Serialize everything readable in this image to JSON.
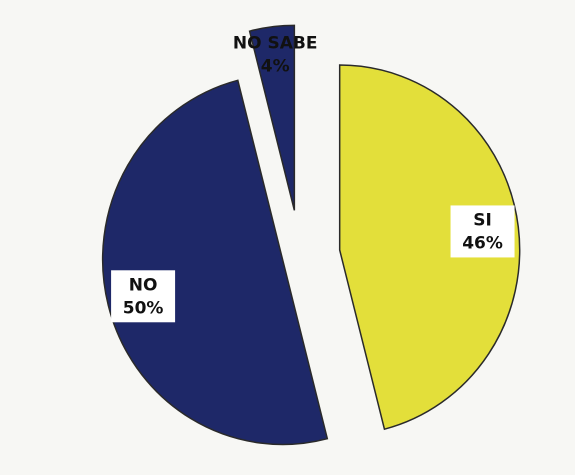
{
  "chart_data": {
    "type": "pie",
    "categories": [
      "SI",
      "NO",
      "NO SABE"
    ],
    "values": [
      46,
      50,
      4
    ],
    "value_labels": [
      "46%",
      "50%",
      "4%"
    ],
    "colors": [
      "#e3df3a",
      "#1e2868",
      "#1e2868"
    ]
  }
}
